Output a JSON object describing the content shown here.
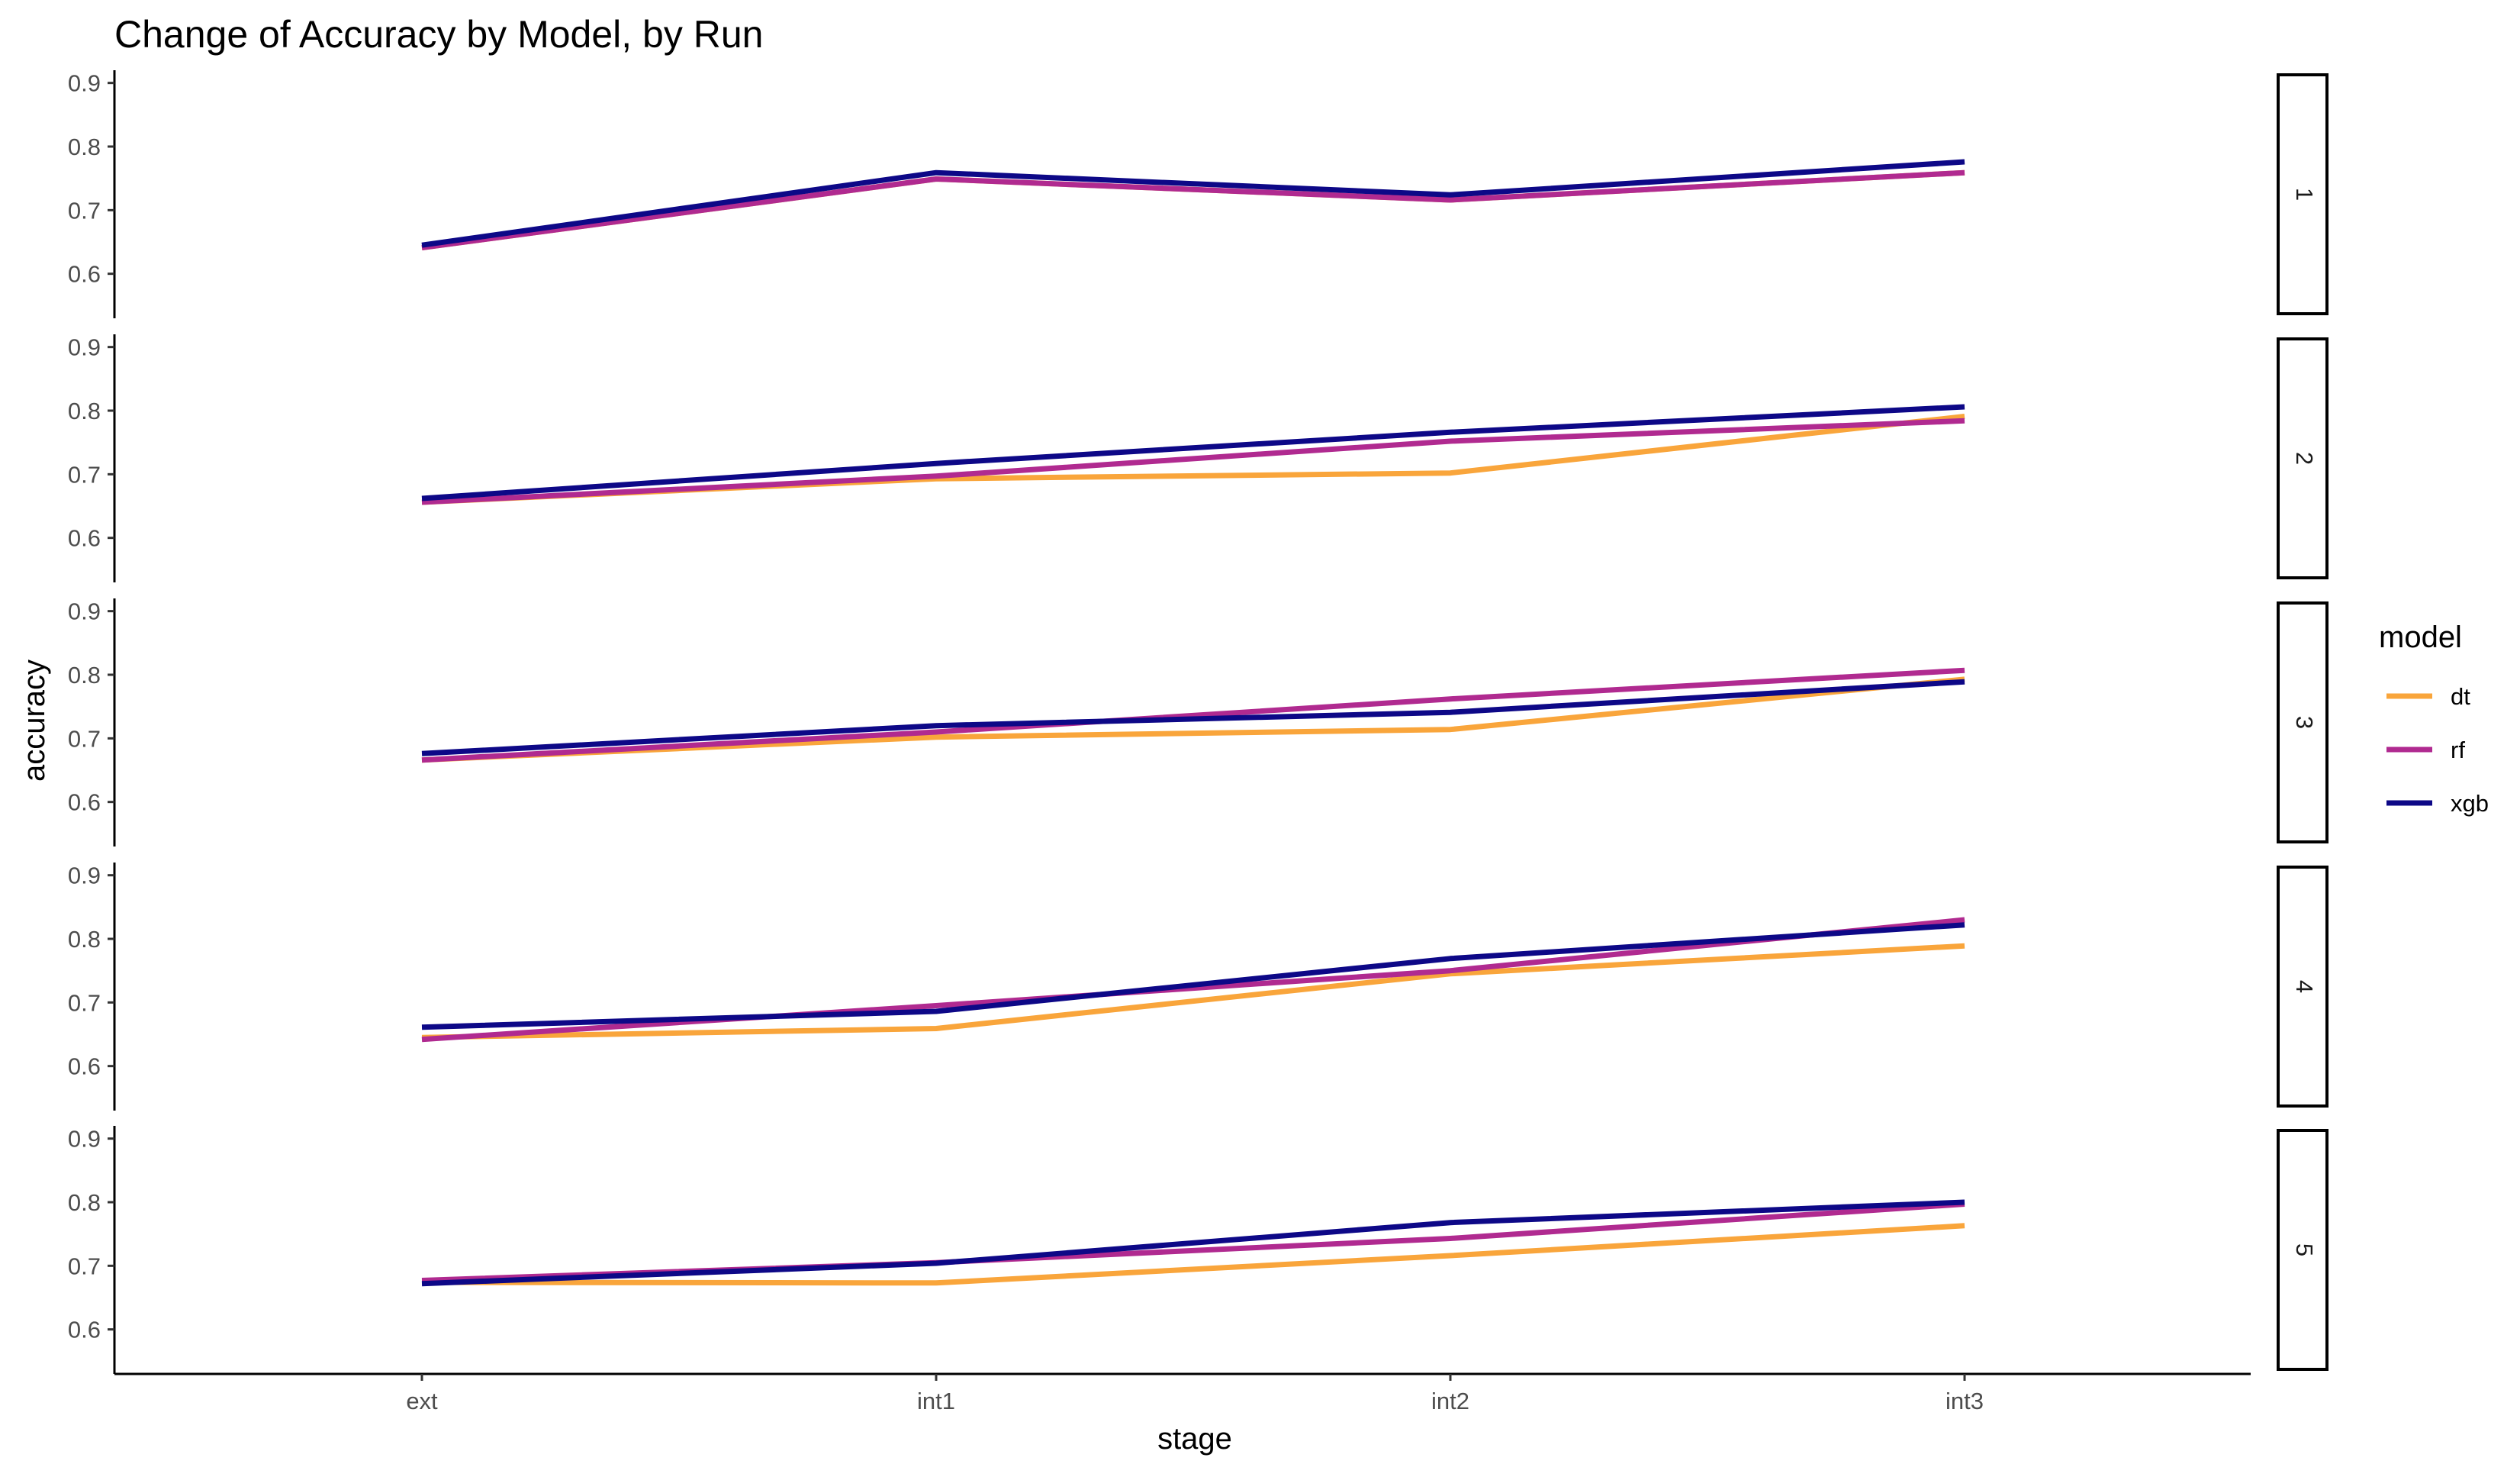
{
  "chart_data": {
    "type": "line",
    "title": "Change of Accuracy by Model, by Run",
    "xlabel": "stage",
    "ylabel": "accuracy",
    "categories": [
      "ext",
      "int1",
      "int2",
      "int3"
    ],
    "y_ticks": [
      0.6,
      0.7,
      0.8,
      0.9
    ],
    "ylim": [
      0.53,
      0.92
    ],
    "grid": false,
    "legend": {
      "title": "model",
      "position": "right",
      "entries": [
        {
          "label": "dt",
          "color": "#F9A53B"
        },
        {
          "label": "rf",
          "color": "#B02A90"
        },
        {
          "label": "xgb",
          "color": "#0D0887"
        }
      ]
    },
    "panels": [
      {
        "label": "1",
        "series": [
          {
            "name": "dt",
            "values": [
              0.641,
              0.749,
              0.716,
              0.759
            ]
          },
          {
            "name": "rf",
            "values": [
              0.641,
              0.749,
              0.716,
              0.759
            ]
          },
          {
            "name": "xgb",
            "values": [
              0.645,
              0.759,
              0.724,
              0.776
            ]
          }
        ]
      },
      {
        "label": "2",
        "series": [
          {
            "name": "dt",
            "values": [
              0.656,
              0.693,
              0.702,
              0.791
            ]
          },
          {
            "name": "rf",
            "values": [
              0.656,
              0.697,
              0.752,
              0.784
            ]
          },
          {
            "name": "xgb",
            "values": [
              0.662,
              0.717,
              0.766,
              0.806
            ]
          }
        ]
      },
      {
        "label": "3",
        "series": [
          {
            "name": "dt",
            "values": [
              0.666,
              0.702,
              0.714,
              0.793
            ]
          },
          {
            "name": "rf",
            "values": [
              0.666,
              0.71,
              0.762,
              0.807
            ]
          },
          {
            "name": "xgb",
            "values": [
              0.676,
              0.72,
              0.741,
              0.789
            ]
          }
        ]
      },
      {
        "label": "4",
        "series": [
          {
            "name": "dt",
            "values": [
              0.645,
              0.659,
              0.745,
              0.789
            ]
          },
          {
            "name": "rf",
            "values": [
              0.642,
              0.695,
              0.75,
              0.83
            ]
          },
          {
            "name": "xgb",
            "values": [
              0.661,
              0.686,
              0.769,
              0.822
            ]
          }
        ]
      },
      {
        "label": "5",
        "series": [
          {
            "name": "dt",
            "values": [
              0.674,
              0.673,
              0.716,
              0.763
            ]
          },
          {
            "name": "rf",
            "values": [
              0.677,
              0.705,
              0.743,
              0.797
            ]
          },
          {
            "name": "xgb",
            "values": [
              0.672,
              0.704,
              0.768,
              0.8
            ]
          }
        ]
      }
    ]
  }
}
